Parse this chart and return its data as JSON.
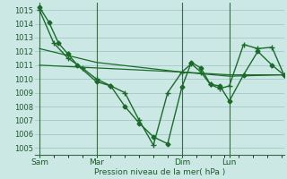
{
  "background_color": "#cce8e4",
  "grid_color": "#aacccc",
  "line_color": "#1a6b2a",
  "xlabel": "Pression niveau de la mer( hPa )",
  "ylim": [
    1004.5,
    1015.5
  ],
  "yticks": [
    1005,
    1006,
    1007,
    1008,
    1009,
    1010,
    1011,
    1012,
    1013,
    1014,
    1015
  ],
  "xtick_labels": [
    "Sam",
    "Mar",
    "Dim",
    "Lun"
  ],
  "xtick_positions": [
    2,
    26,
    62,
    82
  ],
  "vline_positions": [
    2,
    26,
    62,
    82
  ],
  "xlim": [
    0,
    105
  ],
  "series": [
    {
      "x": [
        2,
        6,
        10,
        14,
        18,
        26,
        32,
        38,
        44,
        50,
        56,
        62,
        66,
        70,
        74,
        78,
        82,
        88,
        94,
        100,
        105
      ],
      "y": [
        1015.2,
        1014.1,
        1012.6,
        1011.8,
        1011.0,
        1009.8,
        1009.5,
        1008.0,
        1006.8,
        1005.8,
        1005.3,
        1009.4,
        1011.2,
        1010.8,
        1009.6,
        1009.5,
        1008.4,
        1010.3,
        1012.0,
        1011.0,
        1010.3
      ],
      "marker": "D",
      "linewidth": 1.0,
      "markersize": 2.5
    },
    {
      "x": [
        2,
        8,
        14,
        20,
        26,
        32,
        38,
        44,
        50,
        56,
        62,
        66,
        70,
        74,
        78,
        82,
        88,
        94,
        100,
        105
      ],
      "y": [
        1015.0,
        1012.6,
        1011.5,
        1010.8,
        1010.0,
        1009.5,
        1009.0,
        1007.0,
        1005.2,
        1009.0,
        1010.5,
        1011.1,
        1010.5,
        1009.6,
        1009.3,
        1009.5,
        1012.5,
        1012.2,
        1012.3,
        1010.3
      ],
      "marker": "+",
      "linewidth": 1.0,
      "markersize": 4.0
    },
    {
      "x": [
        2,
        26,
        62,
        82,
        105
      ],
      "y": [
        1011.0,
        1010.8,
        1010.5,
        1010.3,
        1010.3
      ],
      "marker": null,
      "linewidth": 0.9,
      "markersize": 0
    },
    {
      "x": [
        2,
        26,
        62,
        82,
        105
      ],
      "y": [
        1012.2,
        1011.2,
        1010.5,
        1010.2,
        1010.3
      ],
      "marker": null,
      "linewidth": 0.9,
      "markersize": 0
    }
  ]
}
